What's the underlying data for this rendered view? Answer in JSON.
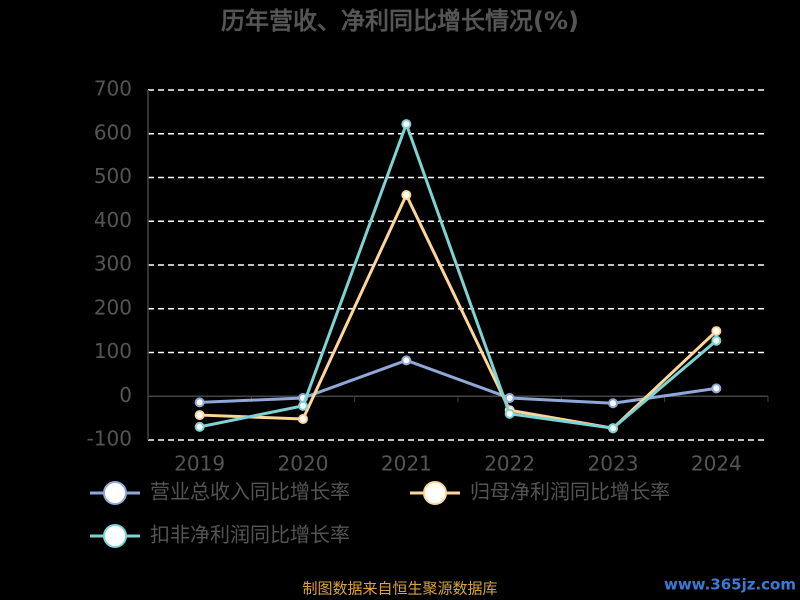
{
  "chart_data": {
    "type": "line",
    "title": "历年营收、净利同比增长情况(%)",
    "categories": [
      "2019",
      "2020",
      "2021",
      "2022",
      "2023",
      "2024"
    ],
    "series": [
      {
        "name": "营业总收入同比增长率",
        "color": "#8fa8d8",
        "values": [
          -14,
          -4,
          82,
          -4,
          -16,
          18
        ]
      },
      {
        "name": "归母净利润同比增长率",
        "color": "#ffd699",
        "values": [
          -43,
          -52,
          460,
          -32,
          -73,
          149
        ]
      },
      {
        "name": "扣非净利润同比增长率",
        "color": "#7fd3d3",
        "values": [
          -70,
          -22,
          622,
          -40,
          -73,
          127
        ]
      }
    ],
    "ylim": [
      -100,
      700
    ],
    "yticks": [
      -100,
      0,
      100,
      200,
      300,
      400,
      500,
      600,
      700
    ],
    "grid": true,
    "source": "制图数据来自恒生聚源数据库",
    "watermark": "www.365jz.com"
  }
}
